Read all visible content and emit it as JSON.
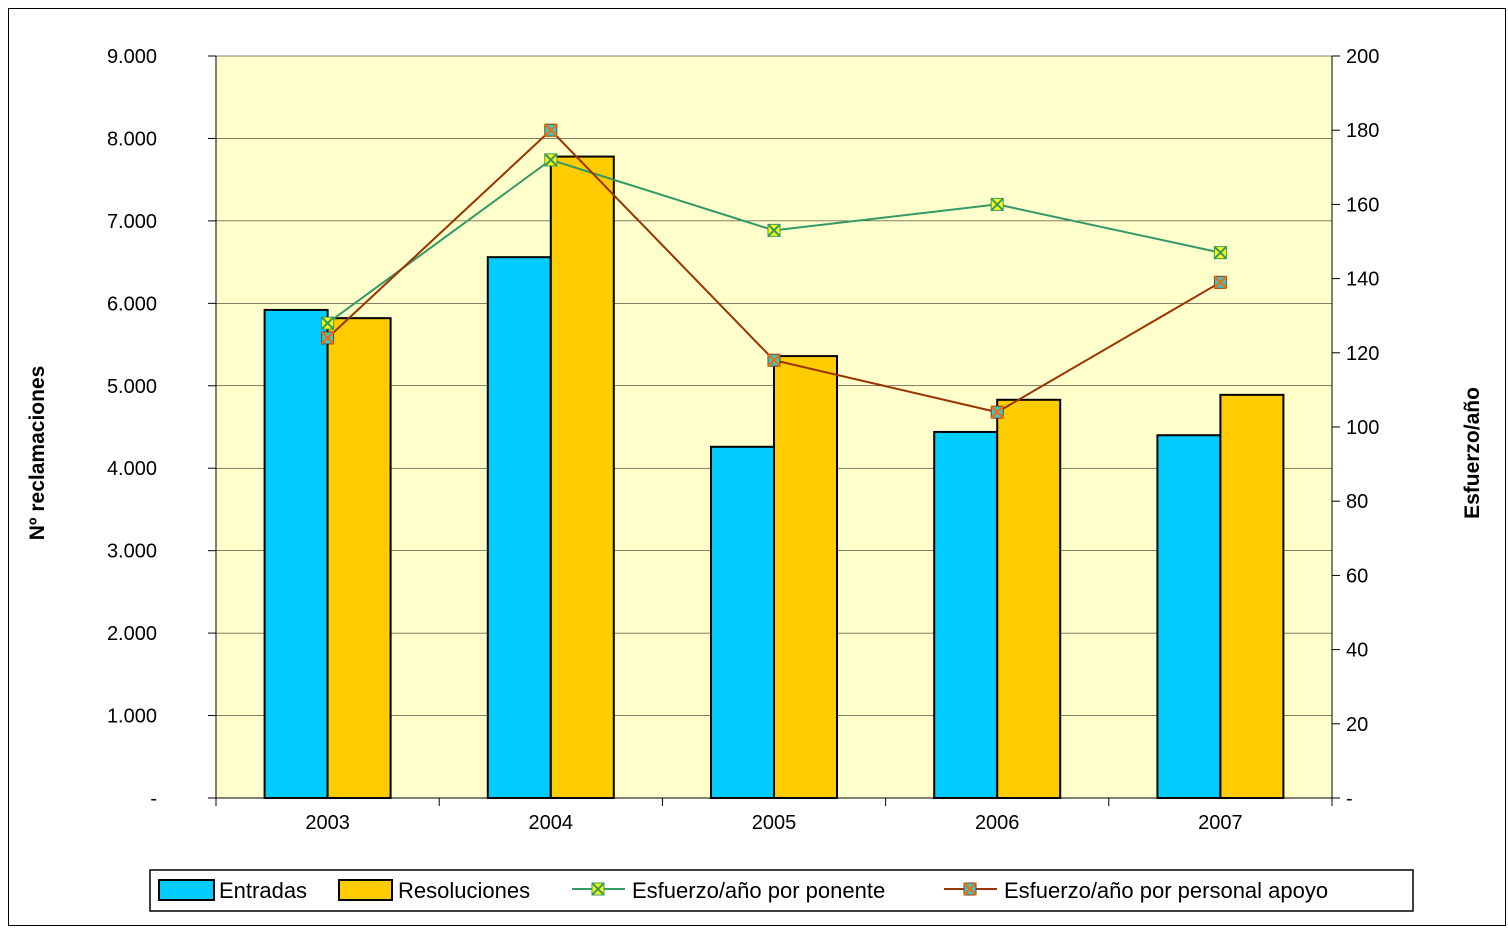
{
  "chart_data": {
    "type": "bar",
    "categories": [
      "2003",
      "2004",
      "2005",
      "2006",
      "2007"
    ],
    "series": [
      {
        "name": "Entradas",
        "type": "bar",
        "axis": "left",
        "color": "#00CCFF",
        "values": [
          5920,
          6560,
          4260,
          4440,
          4400
        ]
      },
      {
        "name": "Resoluciones",
        "type": "bar",
        "axis": "left",
        "color": "#FFCC00",
        "values": [
          5820,
          7780,
          5360,
          4830,
          4890
        ]
      },
      {
        "name": "Esfuerzo/año por ponente",
        "type": "line",
        "axis": "right",
        "color": "#339966",
        "marker_color": "#FFFF00",
        "values": [
          128,
          172,
          153,
          160,
          147
        ]
      },
      {
        "name": "Esfuerzo/año por personal apoyo",
        "type": "line",
        "axis": "right",
        "color": "#993300",
        "marker_color": "#33CCCC",
        "values": [
          124,
          180,
          118,
          104,
          139
        ]
      }
    ],
    "ylabel": "Nº reclamaciones",
    "y2label": "Esfuerzo/año",
    "ylim": [
      0,
      9000
    ],
    "y2lim": [
      0,
      200
    ],
    "yticks": [
      "-",
      "1.000",
      "2.000",
      "3.000",
      "4.000",
      "5.000",
      "6.000",
      "7.000",
      "8.000",
      "9.000"
    ],
    "y2ticks": [
      "-",
      "20",
      "40",
      "60",
      "80",
      "100",
      "120",
      "140",
      "160",
      "180",
      "200"
    ],
    "plot_background": "#FFFFCC",
    "grid": true,
    "legend_position": "bottom"
  }
}
